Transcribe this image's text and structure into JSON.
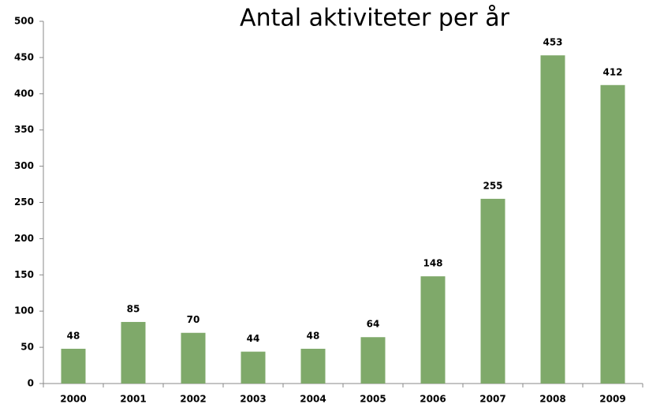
{
  "chart_data": {
    "type": "bar",
    "title": "Antal aktiviteter per år",
    "categories": [
      "2000",
      "2001",
      "2002",
      "2003",
      "2004",
      "2005",
      "2006",
      "2007",
      "2008",
      "2009"
    ],
    "values": [
      48,
      85,
      70,
      44,
      48,
      64,
      148,
      255,
      453,
      412
    ],
    "color": "#7fa96a",
    "ylim": [
      0,
      500
    ],
    "yticks": [
      0,
      50,
      100,
      150,
      200,
      250,
      300,
      350,
      400,
      450,
      500
    ],
    "grid": false
  }
}
